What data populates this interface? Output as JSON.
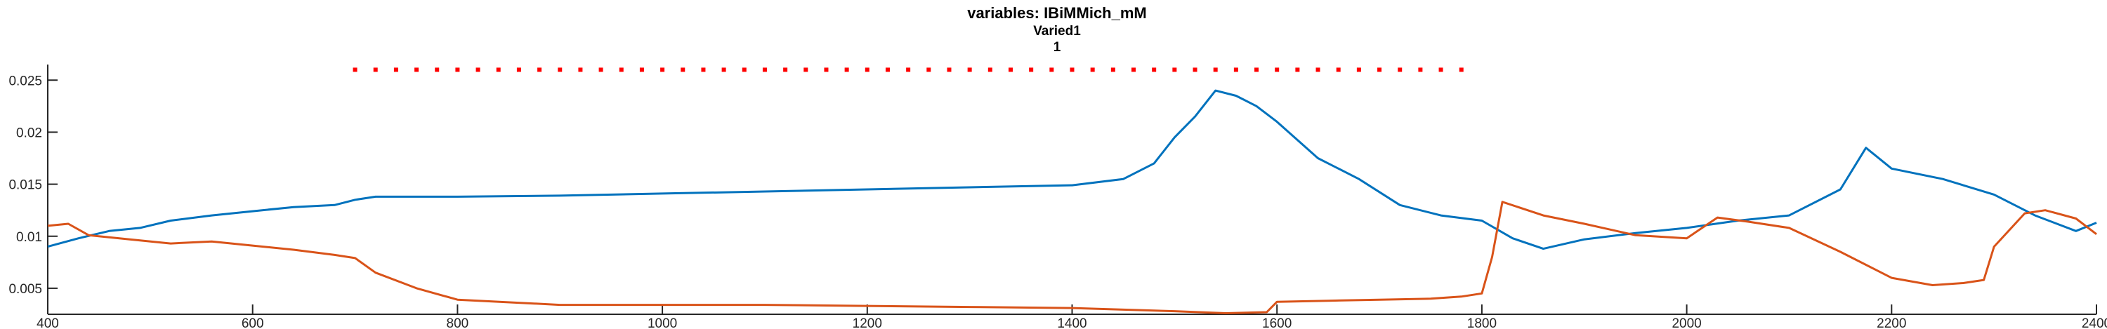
{
  "chart_data": {
    "type": "line",
    "title": "variables: IBiMMich_mM",
    "subtitle": "Varied1",
    "subtitle2": "1",
    "xlabel": "",
    "ylabel": "",
    "xlim": [
      400,
      2400
    ],
    "ylim": [
      0.0025,
      0.0265
    ],
    "xticks": [
      400,
      600,
      800,
      1000,
      1200,
      1400,
      1600,
      1800,
      2000,
      2200,
      2400
    ],
    "yticks": [
      0.005,
      0.01,
      0.015,
      0.02,
      0.025
    ],
    "ytick_labels": [
      "0.005",
      "0.01",
      "0.015",
      "0.02",
      "0.025"
    ],
    "grid": false,
    "colors": {
      "series1": "#0072BD",
      "series2": "#D95319",
      "marker": "#FF0000"
    },
    "marker_series": {
      "y": 0.026,
      "x": [
        700,
        720,
        740,
        760,
        780,
        800,
        820,
        840,
        860,
        880,
        900,
        920,
        940,
        960,
        980,
        1000,
        1020,
        1040,
        1060,
        1080,
        1100,
        1120,
        1140,
        1160,
        1180,
        1200,
        1220,
        1240,
        1260,
        1280,
        1300,
        1320,
        1340,
        1360,
        1380,
        1400,
        1420,
        1440,
        1460,
        1480,
        1500,
        1520,
        1540,
        1560,
        1580,
        1600,
        1620,
        1640,
        1660,
        1680,
        1700,
        1720,
        1740,
        1760,
        1780
      ]
    },
    "series": [
      {
        "x": [
          400,
          430,
          460,
          490,
          520,
          560,
          600,
          640,
          680,
          700,
          720,
          760,
          800,
          900,
          1000,
          1100,
          1200,
          1300,
          1400,
          1450,
          1480,
          1500,
          1520,
          1540,
          1560,
          1580,
          1600,
          1640,
          1680,
          1720,
          1760,
          1800,
          1830,
          1860,
          1900,
          1950,
          2000,
          2050,
          2100,
          2150,
          2175,
          2200,
          2250,
          2300,
          2340,
          2380,
          2400
        ],
        "y": [
          0.009,
          0.0098,
          0.0105,
          0.0108,
          0.0115,
          0.012,
          0.0124,
          0.0128,
          0.013,
          0.0135,
          0.0138,
          0.0138,
          0.0138,
          0.0139,
          0.0141,
          0.0143,
          0.0145,
          0.0147,
          0.0149,
          0.0155,
          0.017,
          0.0195,
          0.0215,
          0.024,
          0.0235,
          0.0225,
          0.021,
          0.0175,
          0.0155,
          0.013,
          0.012,
          0.0115,
          0.0098,
          0.0088,
          0.0097,
          0.0103,
          0.0108,
          0.0115,
          0.012,
          0.0145,
          0.0185,
          0.0165,
          0.0155,
          0.014,
          0.012,
          0.0105,
          0.0113
        ]
      },
      {
        "x": [
          400,
          420,
          440,
          480,
          520,
          560,
          600,
          640,
          680,
          700,
          720,
          760,
          800,
          900,
          1000,
          1100,
          1200,
          1300,
          1400,
          1500,
          1550,
          1590,
          1600,
          1650,
          1700,
          1750,
          1780,
          1800,
          1810,
          1820,
          1860,
          1900,
          1950,
          2000,
          2030,
          2060,
          2100,
          2150,
          2200,
          2240,
          2270,
          2290,
          2300,
          2330,
          2350,
          2380,
          2400
        ],
        "y": [
          0.011,
          0.0112,
          0.0101,
          0.0097,
          0.0093,
          0.0095,
          0.0091,
          0.0087,
          0.0082,
          0.0079,
          0.0065,
          0.005,
          0.0039,
          0.0034,
          0.0034,
          0.0034,
          0.0033,
          0.0032,
          0.0031,
          0.0028,
          0.0026,
          0.0027,
          0.0037,
          0.0038,
          0.0039,
          0.004,
          0.0042,
          0.0045,
          0.008,
          0.0133,
          0.012,
          0.0112,
          0.0101,
          0.0098,
          0.0118,
          0.0114,
          0.0108,
          0.0085,
          0.006,
          0.0053,
          0.0055,
          0.0058,
          0.009,
          0.0122,
          0.0125,
          0.0117,
          0.0102
        ]
      }
    ]
  }
}
